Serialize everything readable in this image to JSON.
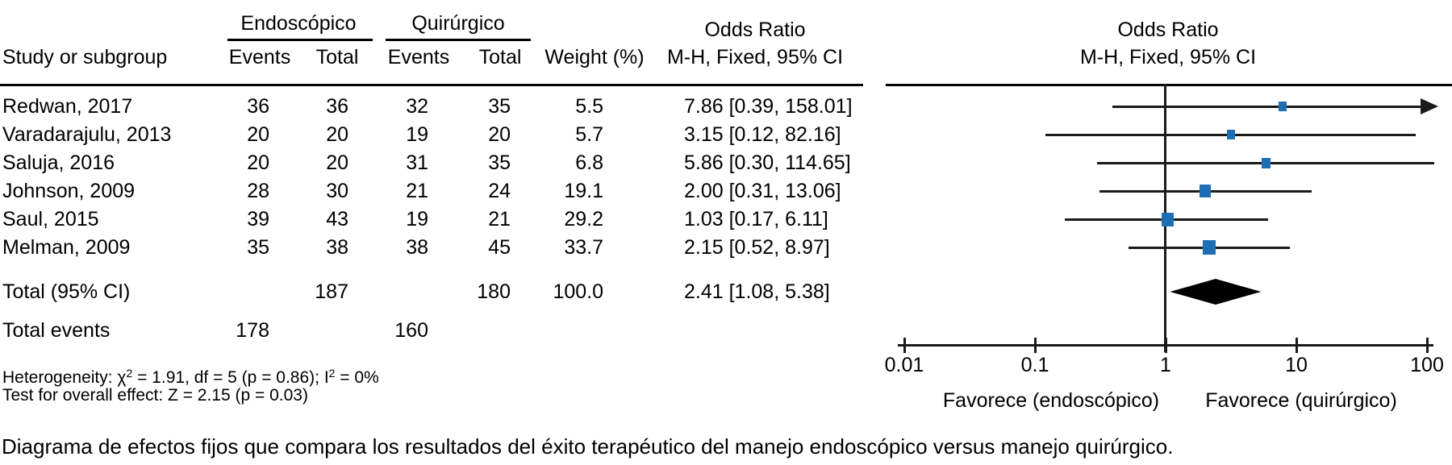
{
  "table": {
    "group_headers": {
      "endoscopic": "Endoscópico",
      "surgical": "Quirúrgico"
    },
    "columns": {
      "study": "Study or subgroup",
      "events1": "Events",
      "total1": "Total",
      "events2": "Events",
      "total2": "Total",
      "weight": "Weight (%)",
      "or_line1": "Odds Ratio",
      "or_line2": "M-H, Fixed, 95% CI"
    },
    "rows": [
      {
        "study": "Redwan, 2017",
        "e1": "36",
        "t1": "36",
        "e2": "32",
        "t2": "35",
        "weight": "5.5",
        "or_ci": "7.86 [0.39, 158.01]"
      },
      {
        "study": "Varadarajulu, 2013",
        "e1": "20",
        "t1": "20",
        "e2": "19",
        "t2": "20",
        "weight": "5.7",
        "or_ci": "3.15 [0.12, 82.16]"
      },
      {
        "study": "Saluja, 2016",
        "e1": "20",
        "t1": "20",
        "e2": "31",
        "t2": "35",
        "weight": "6.8",
        "or_ci": "5.86 [0.30, 114.65]"
      },
      {
        "study": "Johnson, 2009",
        "e1": "28",
        "t1": "30",
        "e2": "21",
        "t2": "24",
        "weight": "19.1",
        "or_ci": "2.00 [0.31, 13.06]"
      },
      {
        "study": "Saul, 2015",
        "e1": "39",
        "t1": "43",
        "e2": "19",
        "t2": "21",
        "weight": "29.2",
        "or_ci": "1.03 [0.17, 6.11]"
      },
      {
        "study": "Melman, 2009",
        "e1": "35",
        "t1": "38",
        "e2": "38",
        "t2": "45",
        "weight": "33.7",
        "or_ci": "2.15 [0.52, 8.97]"
      }
    ],
    "total_row": {
      "label": "Total (95% CI)",
      "t1": "187",
      "t2": "180",
      "weight": "100.0",
      "or_ci": "2.41 [1.08, 5.38]"
    },
    "total_events_row": {
      "label": "Total events",
      "e1": "178",
      "e2": "160"
    }
  },
  "footnotes": {
    "het_prefix": "Heterogeneity: χ",
    "het_sup1": "2",
    "het_mid": " = 1.91, df = 5 (p = 0.86); I",
    "het_sup2": "2",
    "het_end": " = 0%",
    "test_line": "Test for overall effect: Z = 2.15 (p = 0.03)"
  },
  "caption": "Diagrama de efectos fijos que compara los resultados del éxito terapéutico del manejo endoscópico versus manejo quirúrgico.",
  "chart_data": {
    "type": "forest",
    "title_line1": "Odds Ratio",
    "title_line2": "M-H, Fixed, 95% CI",
    "x_scale": "log",
    "xlim": [
      0.01,
      100
    ],
    "x_ticks": [
      0.01,
      0.1,
      1,
      10,
      100
    ],
    "x_tick_labels": [
      "0.01",
      "0.1",
      "1",
      "10",
      "100"
    ],
    "xlabel_left": "Favorece (endoscópico)",
    "xlabel_right": "Favorece (quirúrgico)",
    "null_value": 1,
    "marker_color": "#1f6eb4",
    "line_color": "#1a1a1a",
    "summary_color": "#000000",
    "studies": [
      {
        "name": "Redwan, 2017",
        "or": 7.86,
        "ci_low": 0.39,
        "ci_high": 158.01,
        "weight": 5.5,
        "arrow_right": true
      },
      {
        "name": "Varadarajulu, 2013",
        "or": 3.15,
        "ci_low": 0.12,
        "ci_high": 82.16,
        "weight": 5.7,
        "arrow_right": false
      },
      {
        "name": "Saluja, 2016",
        "or": 5.86,
        "ci_low": 0.3,
        "ci_high": 114.65,
        "weight": 6.8,
        "arrow_right": false
      },
      {
        "name": "Johnson, 2009",
        "or": 2.0,
        "ci_low": 0.31,
        "ci_high": 13.06,
        "weight": 19.1,
        "arrow_right": false
      },
      {
        "name": "Saul, 2015",
        "or": 1.03,
        "ci_low": 0.17,
        "ci_high": 6.11,
        "weight": 29.2,
        "arrow_right": false
      },
      {
        "name": "Melman, 2009",
        "or": 2.15,
        "ci_low": 0.52,
        "ci_high": 8.97,
        "weight": 33.7,
        "arrow_right": false
      }
    ],
    "total": {
      "label": "Total (95% CI)",
      "or": 2.41,
      "ci_low": 1.08,
      "ci_high": 5.38
    }
  }
}
